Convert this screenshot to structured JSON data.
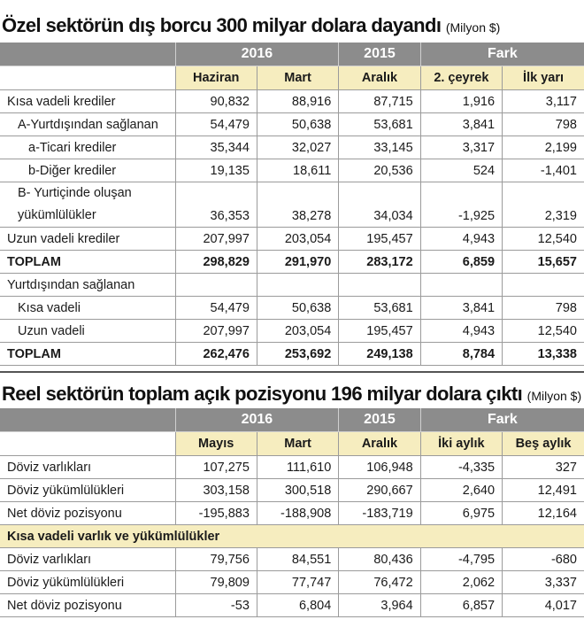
{
  "table1": {
    "title": "Özel sektörün dış borcu 300 milyar dolara dayandı",
    "unit": "(Milyon $)",
    "year_headers": [
      "2016",
      "2015",
      "Fark"
    ],
    "sub_headers": [
      "Haziran",
      "Mart",
      "Aralık",
      "2. çeyrek",
      "İlk yarı"
    ],
    "rows": [
      {
        "label": "Kısa vadeli krediler",
        "values": [
          "90,832",
          "88,916",
          "87,715",
          "1,916",
          "3,117"
        ]
      },
      {
        "label": "A-Yurtdışından sağlanan",
        "values": [
          "54,479",
          "50,638",
          "53,681",
          "3,841",
          "798"
        ]
      },
      {
        "label": "a-Ticari krediler",
        "values": [
          "35,344",
          "32,027",
          "33,145",
          "3,317",
          "2,199"
        ]
      },
      {
        "label": "b-Diğer krediler",
        "values": [
          "19,135",
          "18,611",
          "20,536",
          "524",
          "-1,401"
        ]
      },
      {
        "label": "B- Yurtiçinde oluşan yükümlülükler",
        "values": [
          "36,353",
          "38,278",
          "34,034",
          "-1,925",
          "2,319"
        ]
      },
      {
        "label": "Uzun vadeli krediler",
        "values": [
          "207,997",
          "203,054",
          "195,457",
          "4,943",
          "12,540"
        ]
      },
      {
        "label": "TOPLAM",
        "values": [
          "298,829",
          "291,970",
          "283,172",
          "6,859",
          "15,657"
        ]
      },
      {
        "label": "Yurtdışından sağlanan",
        "values": [
          "",
          "",
          "",
          "",
          ""
        ]
      },
      {
        "label": "Kısa vadeli",
        "values": [
          "54,479",
          "50,638",
          "53,681",
          "3,841",
          "798"
        ]
      },
      {
        "label": "Uzun vadeli",
        "values": [
          "207,997",
          "203,054",
          "195,457",
          "4,943",
          "12,540"
        ]
      },
      {
        "label": "TOPLAM",
        "values": [
          "262,476",
          "253,692",
          "249,138",
          "8,784",
          "13,338"
        ]
      }
    ]
  },
  "table2": {
    "title": "Reel sektörün toplam açık pozisyonu 196 milyar dolara çıktı",
    "unit": "(Milyon $)",
    "year_headers": [
      "2016",
      "2015",
      "Fark"
    ],
    "sub_headers": [
      "Mayıs",
      "Mart",
      "Aralık",
      "İki aylık",
      "Beş aylık"
    ],
    "rows": [
      {
        "label": "Döviz varlıkları",
        "values": [
          "107,275",
          "111,610",
          "106,948",
          "-4,335",
          "327"
        ]
      },
      {
        "label": "Döviz yükümlülükleri",
        "values": [
          "303,158",
          "300,518",
          "290,667",
          "2,640",
          "12,491"
        ]
      },
      {
        "label": "Net döviz pozisyonu",
        "values": [
          "-195,883",
          "-188,908",
          "-183,719",
          "6,975",
          "12,164"
        ]
      }
    ],
    "section_label": "Kısa vadeli varlık ve yükümlülükler",
    "rows2": [
      {
        "label": "Döviz varlıkları",
        "values": [
          "79,756",
          "84,551",
          "80,436",
          "-4,795",
          "-680"
        ]
      },
      {
        "label": "Döviz yükümlülükleri",
        "values": [
          "79,809",
          "77,747",
          "76,472",
          "2,062",
          "3,337"
        ]
      },
      {
        "label": "Net döviz pozisyonu",
        "values": [
          "-53",
          "6,804",
          "3,964",
          "6,857",
          "4,017"
        ]
      }
    ]
  }
}
